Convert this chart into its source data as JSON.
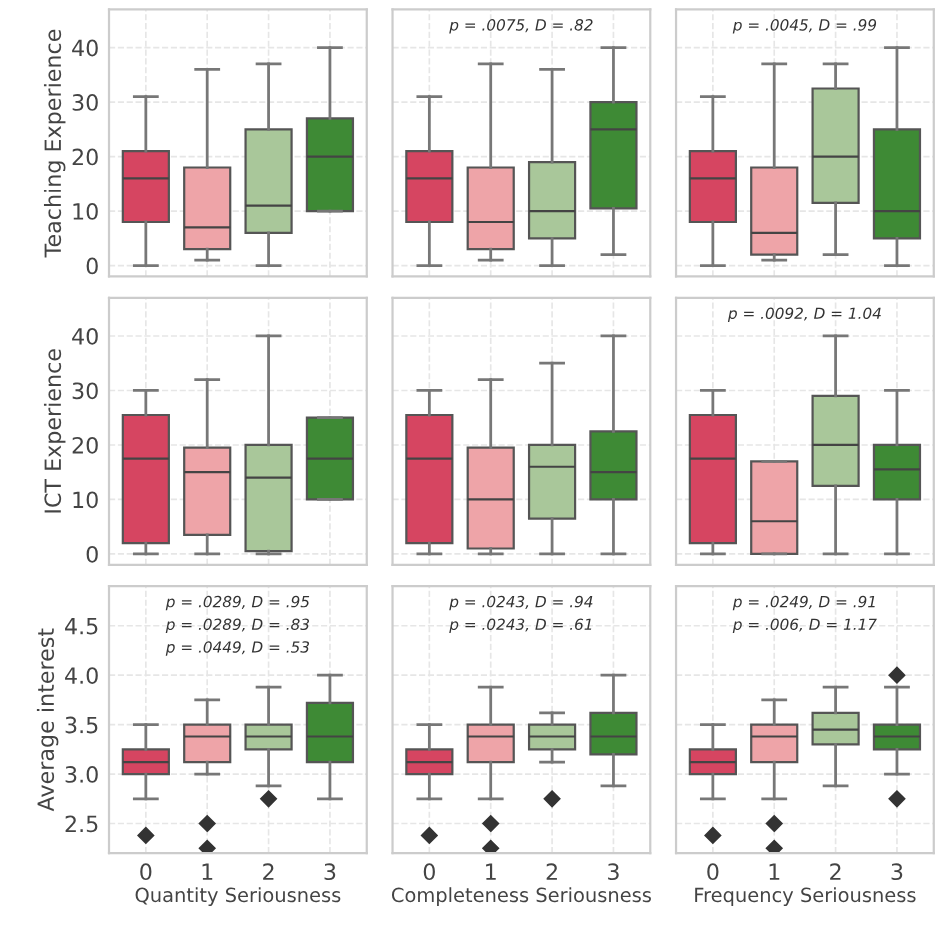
{
  "chart_data": [
    {
      "type": "box",
      "ylabel": "Teaching Experience",
      "categories": [
        "0",
        "1",
        "2",
        "3"
      ],
      "colors": [
        "#d64561",
        "#eea4a8",
        "#a9c79a",
        "#3e8a35"
      ],
      "ylim": [
        -2,
        47
      ],
      "yticks": [
        0,
        10,
        20,
        30,
        40
      ],
      "tick_labels": "y",
      "grid": true,
      "boxes": [
        {
          "low": 0,
          "q1": 8,
          "median": 16,
          "q3": 21,
          "high": 31
        },
        {
          "low": 1,
          "q1": 3,
          "median": 7,
          "q3": 18,
          "high": 36
        },
        {
          "low": 0,
          "q1": 6,
          "median": 11,
          "q3": 25,
          "high": 37
        },
        {
          "low": 10,
          "q1": 10,
          "median": 20,
          "q3": 27,
          "high": 40
        }
      ]
    },
    {
      "type": "box",
      "categories": [
        "0",
        "1",
        "2",
        "3"
      ],
      "colors": [
        "#d64561",
        "#eea4a8",
        "#a9c79a",
        "#3e8a35"
      ],
      "ylim": [
        -2,
        47
      ],
      "yticks": [
        0,
        10,
        20,
        30,
        40
      ],
      "tick_labels": false,
      "grid": true,
      "annotations": [
        "p = .0075, D = .82"
      ],
      "boxes": [
        {
          "low": 0,
          "q1": 8,
          "median": 16,
          "q3": 21,
          "high": 31
        },
        {
          "low": 1,
          "q1": 3,
          "median": 8,
          "q3": 18,
          "high": 37
        },
        {
          "low": 0,
          "q1": 5,
          "median": 10,
          "q3": 19,
          "high": 36
        },
        {
          "low": 2,
          "q1": 10.5,
          "median": 25,
          "q3": 30,
          "high": 40
        }
      ]
    },
    {
      "type": "box",
      "categories": [
        "0",
        "1",
        "2",
        "3"
      ],
      "colors": [
        "#d64561",
        "#eea4a8",
        "#a9c79a",
        "#3e8a35"
      ],
      "ylim": [
        -2,
        47
      ],
      "yticks": [
        0,
        10,
        20,
        30,
        40
      ],
      "tick_labels": false,
      "grid": true,
      "annotations": [
        "p = .0045, D = .99"
      ],
      "boxes": [
        {
          "low": 0,
          "q1": 8,
          "median": 16,
          "q3": 21,
          "high": 31
        },
        {
          "low": 1,
          "q1": 2,
          "median": 6,
          "q3": 18,
          "high": 37
        },
        {
          "low": 2,
          "q1": 11.5,
          "median": 20,
          "q3": 32.5,
          "high": 37
        },
        {
          "low": 0,
          "q1": 5,
          "median": 10,
          "q3": 25,
          "high": 40
        }
      ]
    },
    {
      "type": "box",
      "ylabel": "ICT Experience",
      "categories": [
        "0",
        "1",
        "2",
        "3"
      ],
      "colors": [
        "#d64561",
        "#eea4a8",
        "#a9c79a",
        "#3e8a35"
      ],
      "ylim": [
        -2,
        47
      ],
      "yticks": [
        0,
        10,
        20,
        30,
        40
      ],
      "tick_labels": "y",
      "grid": true,
      "boxes": [
        {
          "low": 0,
          "q1": 2,
          "median": 17.5,
          "q3": 25.5,
          "high": 30
        },
        {
          "low": 0,
          "q1": 3.5,
          "median": 15,
          "q3": 19.5,
          "high": 32
        },
        {
          "low": 0,
          "q1": 0.5,
          "median": 14,
          "q3": 20,
          "high": 40
        },
        {
          "low": 10,
          "q1": 10,
          "median": 17.5,
          "q3": 25,
          "high": 25
        }
      ]
    },
    {
      "type": "box",
      "categories": [
        "0",
        "1",
        "2",
        "3"
      ],
      "colors": [
        "#d64561",
        "#eea4a8",
        "#a9c79a",
        "#3e8a35"
      ],
      "ylim": [
        -2,
        47
      ],
      "yticks": [
        0,
        10,
        20,
        30,
        40
      ],
      "tick_labels": false,
      "grid": true,
      "boxes": [
        {
          "low": 0,
          "q1": 2,
          "median": 17.5,
          "q3": 25.5,
          "high": 30
        },
        {
          "low": 0,
          "q1": 1,
          "median": 10,
          "q3": 19.5,
          "high": 32
        },
        {
          "low": 0,
          "q1": 6.5,
          "median": 16,
          "q3": 20,
          "high": 35
        },
        {
          "low": 0,
          "q1": 10,
          "median": 15,
          "q3": 22.5,
          "high": 40
        }
      ]
    },
    {
      "type": "box",
      "categories": [
        "0",
        "1",
        "2",
        "3"
      ],
      "colors": [
        "#d64561",
        "#eea4a8",
        "#a9c79a",
        "#3e8a35"
      ],
      "ylim": [
        -2,
        47
      ],
      "yticks": [
        0,
        10,
        20,
        30,
        40
      ],
      "tick_labels": false,
      "grid": true,
      "annotations": [
        "p = .0092, D = 1.04"
      ],
      "boxes": [
        {
          "low": 0,
          "q1": 2,
          "median": 17.5,
          "q3": 25.5,
          "high": 30
        },
        {
          "low": 0,
          "q1": 0,
          "median": 6,
          "q3": 17,
          "high": 17
        },
        {
          "low": 0,
          "q1": 12.5,
          "median": 20,
          "q3": 29,
          "high": 40
        },
        {
          "low": 0,
          "q1": 10,
          "median": 15.5,
          "q3": 20,
          "high": 30
        }
      ]
    },
    {
      "type": "box",
      "ylabel": "Average interest",
      "xlabel": "Quantity Seriousness",
      "categories": [
        "0",
        "1",
        "2",
        "3"
      ],
      "colors": [
        "#d64561",
        "#eea4a8",
        "#a9c79a",
        "#3e8a35"
      ],
      "ylim": [
        2.2,
        4.9
      ],
      "yticks": [
        2.5,
        {
          "value": 3,
          "label": "3.0"
        },
        3.5,
        {
          "value": 4,
          "label": "4.0"
        },
        4.5
      ],
      "grid": true,
      "annotations": [
        "p = .0289, D = .95",
        "p = .0289, D = .83",
        "p = .0449, D = .53"
      ],
      "boxes": [
        {
          "low": 2.75,
          "q1": 3.0,
          "median": 3.12,
          "q3": 3.25,
          "high": 3.5,
          "outliers": [
            2.38
          ]
        },
        {
          "low": 3.0,
          "q1": 3.12,
          "median": 3.38,
          "q3": 3.5,
          "high": 3.75,
          "outliers": [
            2.5,
            2.25
          ]
        },
        {
          "low": 2.88,
          "q1": 3.25,
          "median": 3.38,
          "q3": 3.5,
          "high": 3.88,
          "outliers": [
            2.75
          ]
        },
        {
          "low": 2.75,
          "q1": 3.12,
          "median": 3.38,
          "q3": 3.72,
          "high": 4.0
        }
      ]
    },
    {
      "type": "box",
      "xlabel": "Completeness Seriousness",
      "categories": [
        "0",
        "1",
        "2",
        "3"
      ],
      "colors": [
        "#d64561",
        "#eea4a8",
        "#a9c79a",
        "#3e8a35"
      ],
      "ylim": [
        2.2,
        4.9
      ],
      "yticks": [
        2.5,
        3.0,
        3.5,
        4.0,
        4.5
      ],
      "tick_labels": "x",
      "grid": true,
      "annotations": [
        "p = .0243, D = .94",
        "p = .0243, D = .61"
      ],
      "boxes": [
        {
          "low": 2.75,
          "q1": 3.0,
          "median": 3.12,
          "q3": 3.25,
          "high": 3.5,
          "outliers": [
            2.38
          ]
        },
        {
          "low": 2.75,
          "q1": 3.12,
          "median": 3.38,
          "q3": 3.5,
          "high": 3.88,
          "outliers": [
            2.5,
            2.25
          ]
        },
        {
          "low": 3.12,
          "q1": 3.25,
          "median": 3.38,
          "q3": 3.5,
          "high": 3.62,
          "outliers": [
            2.75
          ]
        },
        {
          "low": 2.88,
          "q1": 3.2,
          "median": 3.38,
          "q3": 3.62,
          "high": 4.0
        }
      ]
    },
    {
      "type": "box",
      "xlabel": "Frequency Seriousness",
      "categories": [
        "0",
        "1",
        "2",
        "3"
      ],
      "colors": [
        "#d64561",
        "#eea4a8",
        "#a9c79a",
        "#3e8a35"
      ],
      "ylim": [
        2.2,
        4.9
      ],
      "yticks": [
        2.5,
        3.0,
        3.5,
        4.0,
        4.5
      ],
      "tick_labels": "x",
      "grid": true,
      "annotations": [
        "p = .0249, D = .91",
        "p = .006, D = 1.17"
      ],
      "boxes": [
        {
          "low": 2.75,
          "q1": 3.0,
          "median": 3.12,
          "q3": 3.25,
          "high": 3.5,
          "outliers": [
            2.38
          ]
        },
        {
          "low": 2.75,
          "q1": 3.12,
          "median": 3.38,
          "q3": 3.5,
          "high": 3.75,
          "outliers": [
            2.5,
            2.25
          ]
        },
        {
          "low": 2.88,
          "q1": 3.3,
          "median": 3.45,
          "q3": 3.62,
          "high": 3.88
        },
        {
          "low": 3.0,
          "q1": 3.25,
          "median": 3.38,
          "q3": 3.5,
          "high": 3.88,
          "outliers": [
            4.0,
            2.75
          ]
        }
      ]
    }
  ]
}
